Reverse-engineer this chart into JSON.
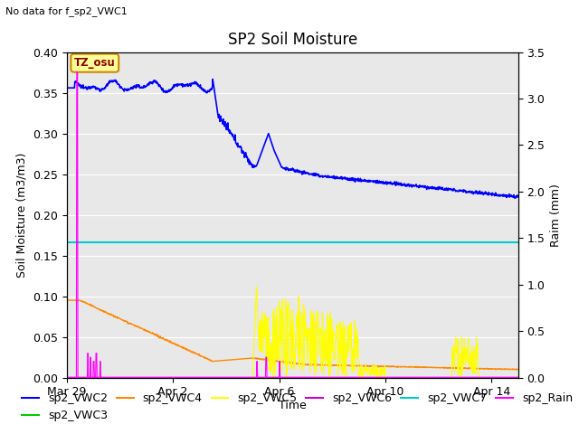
{
  "title": "SP2 Soil Moisture",
  "no_data_label": "No data for f_sp2_VWC1",
  "tz_label": "TZ_osu",
  "ylabel_left": "Soil Moisture (m3/m3)",
  "ylabel_right": "Raim (mm)",
  "xlabel": "Time",
  "ylim_left": [
    0.0,
    0.4
  ],
  "ylim_right": [
    0.0,
    3.5
  ],
  "background_color": "#e8e8e8",
  "fig_background": "#ffffff",
  "title_fontsize": 12,
  "axis_fontsize": 9,
  "tick_fontsize": 9,
  "legend_fontsize": 9,
  "colors": {
    "sp2_VWC2": "#0000ff",
    "sp2_VWC3": "#00cc00",
    "sp2_VWC4": "#ff8800",
    "sp2_VWC5": "#ffff00",
    "sp2_VWC6": "#cc00cc",
    "sp2_VWC7": "#00cccc",
    "sp2_Rain": "#ff00ff"
  },
  "cyan_line_y": 0.166,
  "xlim": [
    0,
    17
  ],
  "xtick_positions": [
    0,
    4,
    8,
    12,
    16
  ],
  "xtick_labels": [
    "Mar 29",
    "Apr 2",
    "Apr 6",
    "Apr 10",
    "Apr 14"
  ],
  "yticks_left": [
    0.0,
    0.05,
    0.1,
    0.15,
    0.2,
    0.25,
    0.3,
    0.35,
    0.4
  ],
  "yticks_right": [
    0.0,
    0.5,
    1.0,
    1.5,
    2.0,
    2.5,
    3.0,
    3.5
  ]
}
